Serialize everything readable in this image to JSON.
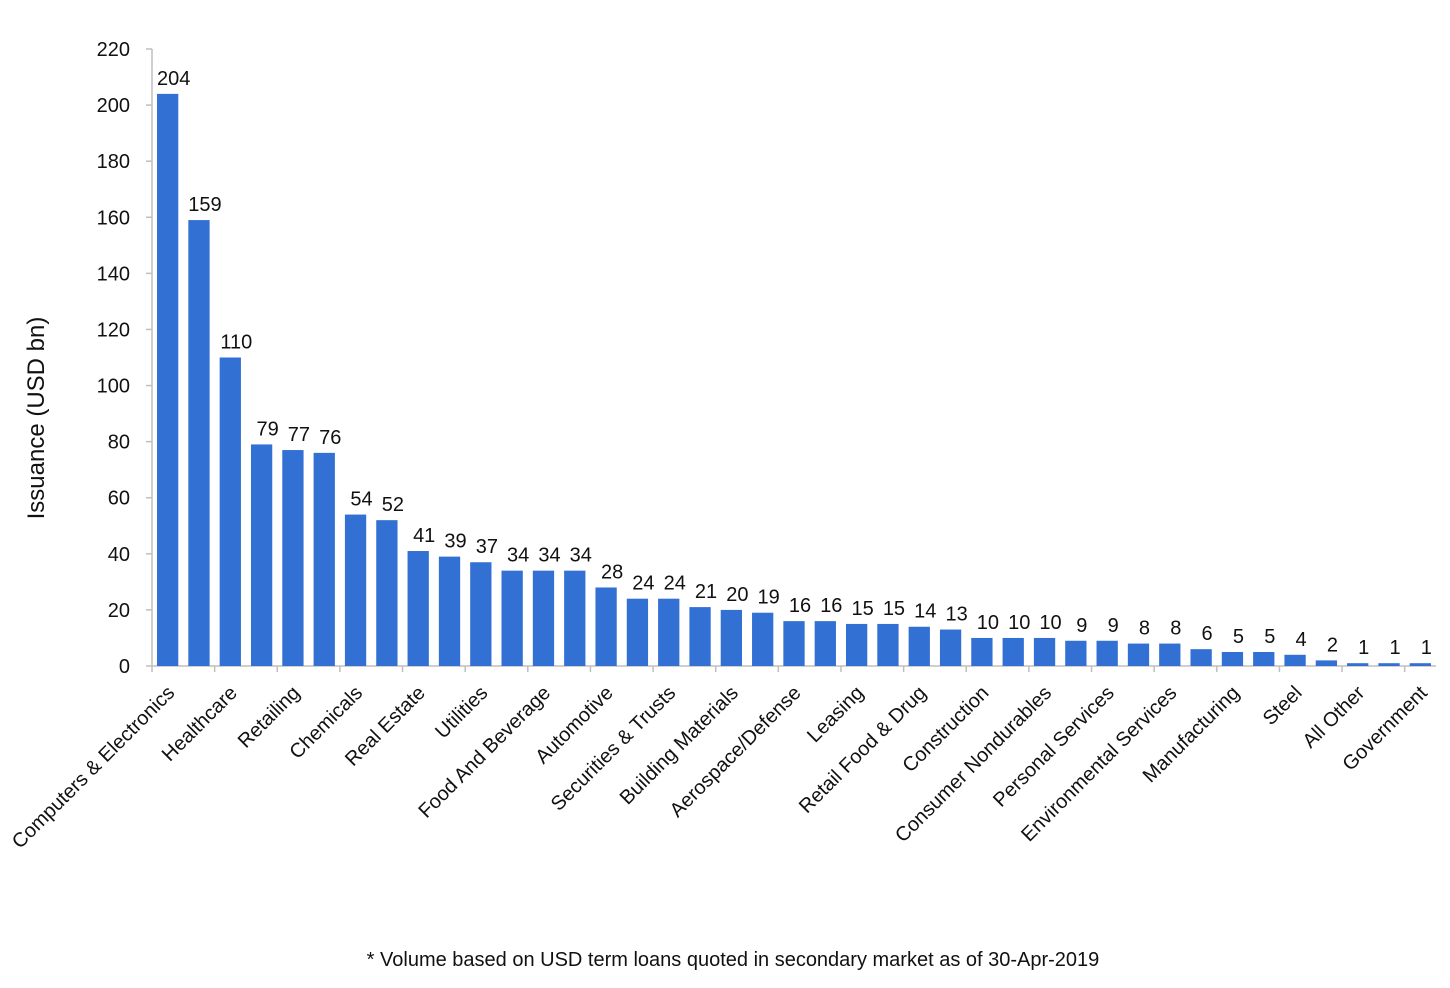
{
  "chart_data": {
    "type": "bar",
    "ylabel": "Issuance (USD bn)",
    "note": "* Volume based on USD term loans quoted in secondary market as of 30-Apr-2019",
    "categories": [
      "Computers & Electronics",
      null,
      "Healthcare",
      null,
      "Retailing",
      null,
      "Chemicals",
      null,
      "Real Estate",
      null,
      "Utilities",
      null,
      "Food And Beverage",
      null,
      "Automotive",
      null,
      "Securities & Trusts",
      null,
      "Building Materials",
      null,
      "Aerospace/Defense",
      null,
      "Leasing",
      null,
      "Retail Food & Drug",
      null,
      "Construction",
      null,
      "Consumer Nondurables",
      null,
      "Personal Services",
      null,
      "Environmental Services",
      null,
      "Manufacturing",
      null,
      "Steel",
      null,
      "All Other",
      null,
      "Government"
    ],
    "values": [
      204,
      159,
      110,
      79,
      77,
      76,
      54,
      52,
      41,
      39,
      37,
      34,
      34,
      34,
      28,
      24,
      24,
      21,
      20,
      19,
      16,
      16,
      15,
      15,
      14,
      13,
      10,
      10,
      10,
      9,
      9,
      8,
      8,
      6,
      5,
      5,
      4,
      2,
      1,
      1,
      1
    ],
    "color": "#3370d4",
    "ylim": [
      0,
      220
    ],
    "yticks": [
      0,
      20,
      40,
      60,
      80,
      100,
      120,
      140,
      160,
      180,
      200,
      220
    ],
    "grid": false
  }
}
